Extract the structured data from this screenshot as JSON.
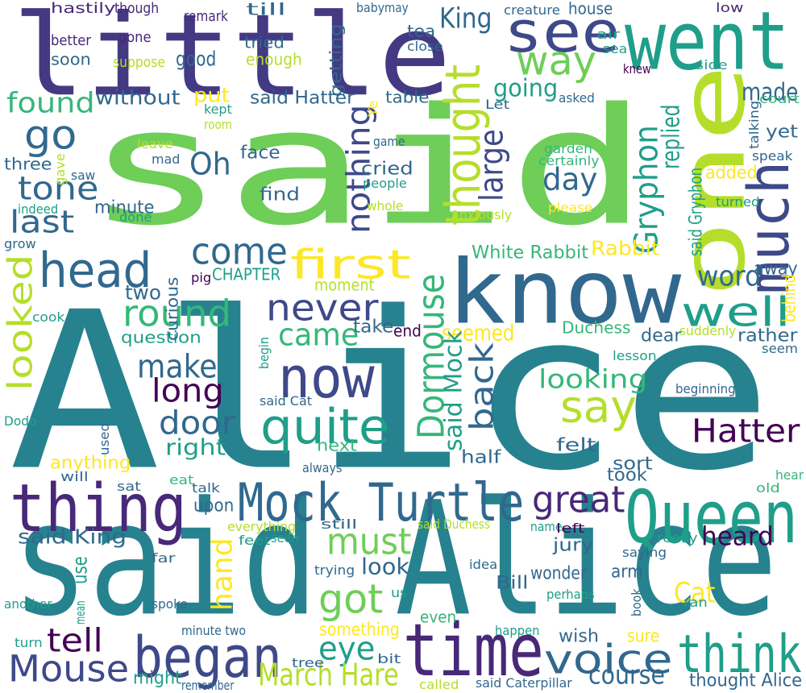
{
  "colors": {
    "dark_purple": "#440154",
    "indigo": "#482878",
    "purple_blue": "#443983",
    "slate_blue": "#3e4989",
    "steel_blue": "#31688e",
    "deep_teal": "#26828e",
    "teal": "#1f9e89",
    "green_teal": "#35b779",
    "light_green": "#6ece58",
    "lime": "#b5de2b",
    "yellow": "#fde725"
  },
  "words": [
    {
      "text": "Alice",
      "color": "deep_teal"
    },
    {
      "text": "said",
      "color": "light_green"
    },
    {
      "text": "said Alice",
      "color": "deep_teal"
    },
    {
      "text": "little",
      "color": "purple_blue"
    },
    {
      "text": "one",
      "color": "lime"
    },
    {
      "text": "know",
      "color": "steel_blue"
    },
    {
      "text": "went",
      "color": "teal"
    },
    {
      "text": "thing",
      "color": "indigo"
    },
    {
      "text": "Queen",
      "color": "teal"
    },
    {
      "text": "Mock Turtle",
      "color": "steel_blue"
    },
    {
      "text": "time",
      "color": "indigo"
    },
    {
      "text": "began",
      "color": "slate_blue"
    },
    {
      "text": "now",
      "color": "slate_blue"
    },
    {
      "text": "think",
      "color": "teal"
    },
    {
      "text": "see",
      "color": "slate_blue"
    },
    {
      "text": "much",
      "color": "slate_blue"
    },
    {
      "text": "head",
      "color": "steel_blue"
    },
    {
      "text": "way",
      "color": "light_green"
    },
    {
      "text": "quite",
      "color": "teal"
    },
    {
      "text": "well",
      "color": "teal"
    },
    {
      "text": "voice",
      "color": "steel_blue"
    },
    {
      "text": "first",
      "color": "yellow"
    },
    {
      "text": "thought",
      "color": "lime"
    },
    {
      "text": "Mouse",
      "color": "slate_blue"
    },
    {
      "text": "say",
      "color": "lime"
    },
    {
      "text": "never",
      "color": "slate_blue"
    },
    {
      "text": "come",
      "color": "steel_blue"
    },
    {
      "text": "got",
      "color": "light_green"
    },
    {
      "text": "must",
      "color": "light_green"
    },
    {
      "text": "round",
      "color": "green_teal"
    },
    {
      "text": "go",
      "color": "steel_blue"
    },
    {
      "text": "Dormouse",
      "color": "green_teal"
    },
    {
      "text": "looked",
      "color": "lime"
    },
    {
      "text": "great",
      "color": "indigo"
    },
    {
      "text": "make",
      "color": "steel_blue"
    },
    {
      "text": "came",
      "color": "green_teal"
    },
    {
      "text": "eye",
      "color": "teal"
    },
    {
      "text": "tone",
      "color": "steel_blue"
    },
    {
      "text": "found",
      "color": "green_teal"
    },
    {
      "text": "Hatter",
      "color": "dark_purple"
    },
    {
      "text": "Gryphon",
      "color": "teal"
    },
    {
      "text": "tell",
      "color": "dark_purple"
    },
    {
      "text": "back",
      "color": "steel_blue"
    },
    {
      "text": "door",
      "color": "steel_blue"
    },
    {
      "text": "long",
      "color": "dark_purple"
    },
    {
      "text": "last",
      "color": "steel_blue"
    },
    {
      "text": "March Hare",
      "color": "lime"
    },
    {
      "text": "King",
      "color": "steel_blue"
    },
    {
      "text": "Oh",
      "color": "steel_blue"
    },
    {
      "text": "day",
      "color": "steel_blue"
    },
    {
      "text": "large",
      "color": "slate_blue"
    },
    {
      "text": "nothing",
      "color": "slate_blue"
    },
    {
      "text": "hand",
      "color": "yellow"
    },
    {
      "text": "heard",
      "color": "dark_purple"
    },
    {
      "text": "word",
      "color": "steel_blue"
    },
    {
      "text": "looking",
      "color": "green_teal"
    },
    {
      "text": "Cat",
      "color": "yellow"
    },
    {
      "text": "course",
      "color": "steel_blue"
    },
    {
      "text": "made",
      "color": "steel_blue"
    },
    {
      "text": "going",
      "color": "teal"
    },
    {
      "text": "right",
      "color": "teal"
    },
    {
      "text": "look",
      "color": "steel_blue"
    },
    {
      "text": "replied",
      "color": "teal"
    },
    {
      "text": "seemed",
      "color": "yellow"
    },
    {
      "text": "put",
      "color": "yellow"
    },
    {
      "text": "good",
      "color": "steel_blue"
    },
    {
      "text": "without",
      "color": "steel_blue"
    },
    {
      "text": "said Hatter",
      "color": "steel_blue"
    },
    {
      "text": "White Rabbit",
      "color": "green_teal"
    },
    {
      "text": "Rabbit",
      "color": "yellow"
    },
    {
      "text": "wish",
      "color": "steel_blue"
    },
    {
      "text": "sure",
      "color": "yellow"
    },
    {
      "text": "something",
      "color": "yellow"
    },
    {
      "text": "thought Alice",
      "color": "steel_blue"
    },
    {
      "text": "said King",
      "color": "steel_blue"
    },
    {
      "text": "took",
      "color": "steel_blue"
    },
    {
      "text": "Duchess",
      "color": "green_teal"
    },
    {
      "text": "said Mock",
      "color": "teal"
    },
    {
      "text": "face",
      "color": "steel_blue"
    },
    {
      "text": "cried",
      "color": "steel_blue"
    },
    {
      "text": "find",
      "color": "steel_blue"
    },
    {
      "text": "added",
      "color": "yellow"
    },
    {
      "text": "moment",
      "color": "lime"
    },
    {
      "text": "two",
      "color": "steel_blue"
    },
    {
      "text": "minute",
      "color": "steel_blue"
    },
    {
      "text": "CHAPTER",
      "color": "teal"
    },
    {
      "text": "question",
      "color": "teal"
    },
    {
      "text": "anything",
      "color": "yellow"
    },
    {
      "text": "next",
      "color": "green_teal"
    },
    {
      "text": "half",
      "color": "steel_blue"
    },
    {
      "text": "felt",
      "color": "steel_blue"
    },
    {
      "text": "sort",
      "color": "steel_blue"
    },
    {
      "text": "upon",
      "color": "steel_blue"
    },
    {
      "text": "jury",
      "color": "steel_blue"
    },
    {
      "text": "arm",
      "color": "steel_blue"
    },
    {
      "text": "wonder",
      "color": "steel_blue"
    },
    {
      "text": "Bill",
      "color": "steel_blue"
    },
    {
      "text": "yet",
      "color": "steel_blue"
    },
    {
      "text": "rather",
      "color": "steel_blue"
    },
    {
      "text": "away",
      "color": "steel_blue"
    },
    {
      "text": "dear",
      "color": "steel_blue"
    },
    {
      "text": "take",
      "color": "steel_blue"
    },
    {
      "text": "end",
      "color": "dark_purple"
    },
    {
      "text": "even",
      "color": "green_teal"
    },
    {
      "text": "might",
      "color": "teal"
    },
    {
      "text": "use",
      "color": "teal"
    },
    {
      "text": "tea",
      "color": "steel_blue"
    },
    {
      "text": "tried",
      "color": "steel_blue"
    },
    {
      "text": "enough",
      "color": "lime"
    },
    {
      "text": "soon",
      "color": "steel_blue"
    },
    {
      "text": "three",
      "color": "steel_blue"
    },
    {
      "text": "curious",
      "color": "steel_blue"
    },
    {
      "text": "till",
      "color": "steel_blue"
    },
    {
      "text": "getting",
      "color": "steel_blue"
    },
    {
      "text": "table",
      "color": "steel_blue"
    },
    {
      "text": "house",
      "color": "steel_blue"
    },
    {
      "text": "hastily",
      "color": "indigo"
    },
    {
      "text": "though",
      "color": "indigo"
    },
    {
      "text": "remark",
      "color": "indigo"
    },
    {
      "text": "better",
      "color": "indigo"
    },
    {
      "text": "gone",
      "color": "indigo"
    },
    {
      "text": "suppose",
      "color": "lime"
    },
    {
      "text": "baby",
      "color": "steel_blue"
    },
    {
      "text": "may",
      "color": "steel_blue"
    },
    {
      "text": "close",
      "color": "steel_blue"
    },
    {
      "text": "creature",
      "color": "steel_blue"
    },
    {
      "text": "air",
      "color": "teal"
    },
    {
      "text": "sea",
      "color": "teal"
    },
    {
      "text": "low",
      "color": "indigo"
    },
    {
      "text": "knew",
      "color": "dark_purple"
    },
    {
      "text": "side",
      "color": "teal"
    },
    {
      "text": "court",
      "color": "green_teal"
    },
    {
      "text": "talking",
      "color": "steel_blue"
    },
    {
      "text": "kept",
      "color": "teal"
    },
    {
      "text": "room",
      "color": "lime"
    },
    {
      "text": "Ye",
      "color": "yellow"
    },
    {
      "text": "Let",
      "color": "steel_blue"
    },
    {
      "text": "asked",
      "color": "steel_blue"
    },
    {
      "text": "leave",
      "color": "lime"
    },
    {
      "text": "mad",
      "color": "steel_blue"
    },
    {
      "text": "gave",
      "color": "lime"
    },
    {
      "text": "saw",
      "color": "steel_blue"
    },
    {
      "text": "indeed",
      "color": "teal"
    },
    {
      "text": "done",
      "color": "teal"
    },
    {
      "text": "game",
      "color": "steel_blue"
    },
    {
      "text": "people",
      "color": "teal"
    },
    {
      "text": "whole",
      "color": "lime"
    },
    {
      "text": "anxiously",
      "color": "lime"
    },
    {
      "text": "garden",
      "color": "green_teal"
    },
    {
      "text": "certainly",
      "color": "green_teal"
    },
    {
      "text": "please",
      "color": "yellow"
    },
    {
      "text": "turned",
      "color": "teal"
    },
    {
      "text": "speak",
      "color": "steel_blue"
    },
    {
      "text": "said Gryphon",
      "color": "teal"
    },
    {
      "text": "grow",
      "color": "steel_blue"
    },
    {
      "text": "pig",
      "color": "dark_purple"
    },
    {
      "text": "cook",
      "color": "teal"
    },
    {
      "text": "behind",
      "color": "yellow"
    },
    {
      "text": "suddenly",
      "color": "lime"
    },
    {
      "text": "seem",
      "color": "steel_blue"
    },
    {
      "text": "lesson",
      "color": "teal"
    },
    {
      "text": "begin",
      "color": "teal"
    },
    {
      "text": "beginning",
      "color": "steel_blue"
    },
    {
      "text": "said Cat",
      "color": "steel_blue"
    },
    {
      "text": "Dodo",
      "color": "teal"
    },
    {
      "text": "used",
      "color": "steel_blue"
    },
    {
      "text": "always",
      "color": "steel_blue"
    },
    {
      "text": "will",
      "color": "steel_blue"
    },
    {
      "text": "eat",
      "color": "green_teal"
    },
    {
      "text": "sat",
      "color": "steel_blue"
    },
    {
      "text": "talk",
      "color": "steel_blue"
    },
    {
      "text": "hear",
      "color": "green_teal"
    },
    {
      "text": "old",
      "color": "green_teal"
    },
    {
      "text": "everything",
      "color": "lime"
    },
    {
      "text": "still",
      "color": "steel_blue"
    },
    {
      "text": "said Duchess",
      "color": "lime"
    },
    {
      "text": "name",
      "color": "teal"
    },
    {
      "text": "left",
      "color": "dark_purple"
    },
    {
      "text": "feet",
      "color": "teal"
    },
    {
      "text": "seen",
      "color": "teal"
    },
    {
      "text": "really",
      "color": "teal"
    },
    {
      "text": "far",
      "color": "steel_blue"
    },
    {
      "text": "trying",
      "color": "steel_blue"
    },
    {
      "text": "idea",
      "color": "steel_blue"
    },
    {
      "text": "saying",
      "color": "steel_blue"
    },
    {
      "text": "another",
      "color": "teal"
    },
    {
      "text": "mean",
      "color": "teal"
    },
    {
      "text": "spoke",
      "color": "steel_blue"
    },
    {
      "text": "us",
      "color": "teal"
    },
    {
      "text": "perhaps",
      "color": "teal"
    },
    {
      "text": "book",
      "color": "steel_blue"
    },
    {
      "text": "ran",
      "color": "teal"
    },
    {
      "text": "minute two",
      "color": "steel_blue"
    },
    {
      "text": "happen",
      "color": "teal"
    },
    {
      "text": "turn",
      "color": "teal"
    },
    {
      "text": "bit",
      "color": "steel_blue"
    },
    {
      "text": "tree",
      "color": "steel_blue"
    },
    {
      "text": "remember",
      "color": "steel_blue"
    },
    {
      "text": "called",
      "color": "lime"
    },
    {
      "text": "said Caterpillar",
      "color": "steel_blue"
    }
  ]
}
